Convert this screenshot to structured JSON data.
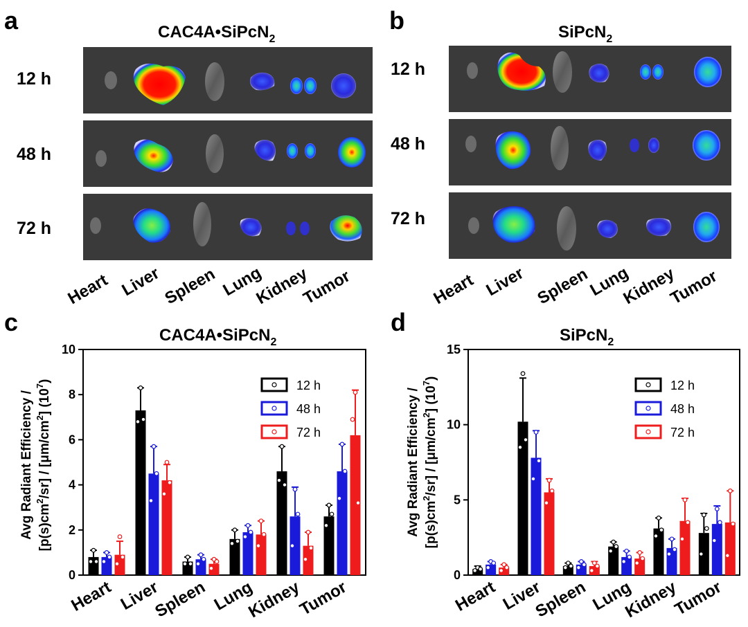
{
  "panel_a": {
    "label": "a",
    "title": "CAC4A•SiPcN",
    "title_sub": "2",
    "time_labels": [
      "12 h",
      "48 h",
      "72 h"
    ],
    "organ_labels": [
      "Heart",
      "Liver",
      "Spleen",
      "Lung",
      "Kidney",
      "Tumor"
    ]
  },
  "panel_b": {
    "label": "b",
    "title": "SiPcN",
    "title_sub": "2",
    "time_labels": [
      "12 h",
      "48 h",
      "72 h"
    ],
    "organ_labels": [
      "Heart",
      "Liver",
      "Spleen",
      "Lung",
      "Kidney",
      "Tumor"
    ]
  },
  "colors": {
    "h12": "#000000",
    "h48": "#1a1adb",
    "h72": "#ee1c1c",
    "imaging_bg": "#3a3a3a"
  },
  "chart_data": [
    {
      "type": "bar",
      "panel_label": "c",
      "title": "CAC4A•SiPcN",
      "title_sub": "2",
      "ylabel_line1": "Avg Radiant Efficiency /",
      "ylabel_line2_a": "[p(s)cm",
      "ylabel_line2_b": "2",
      "ylabel_line2_c": "/sr] / [μm/cm",
      "ylabel_line2_d": "2",
      "ylabel_line2_e": "] (10",
      "ylabel_line2_f": "7",
      "ylabel_line2_g": ")",
      "categories": [
        "Heart",
        "Liver",
        "Spleen",
        "Lung",
        "Kidney",
        "Tumor"
      ],
      "ylim": [
        0,
        10
      ],
      "yticks": [
        0,
        2,
        4,
        6,
        8,
        10
      ],
      "legend_position": "top-right",
      "series": [
        {
          "name": "12 h",
          "color": "#000000",
          "values": [
            0.8,
            7.3,
            0.6,
            1.6,
            4.6,
            2.6
          ],
          "errors": [
            0.3,
            1.0,
            0.2,
            0.4,
            1.1,
            0.5
          ],
          "points": [
            [
              1.1,
              0.6,
              0.6
            ],
            [
              8.3,
              6.8,
              6.9
            ],
            [
              0.8,
              0.5,
              0.5
            ],
            [
              2.0,
              1.4,
              1.5
            ],
            [
              5.7,
              4.2,
              4.0
            ],
            [
              3.1,
              2.2,
              2.7
            ]
          ]
        },
        {
          "name": "48 h",
          "color": "#1a1adb",
          "values": [
            0.8,
            4.5,
            0.7,
            1.9,
            2.6,
            4.6
          ],
          "errors": [
            0.2,
            1.2,
            0.2,
            0.3,
            1.3,
            1.2
          ],
          "points": [
            [
              1.0,
              0.6,
              0.8
            ],
            [
              5.7,
              3.3,
              4.5
            ],
            [
              0.9,
              0.5,
              0.7
            ],
            [
              2.2,
              1.7,
              1.9
            ],
            [
              3.8,
              1.3,
              2.7
            ],
            [
              5.8,
              3.4,
              4.6
            ]
          ]
        },
        {
          "name": "72 h",
          "color": "#ee1c1c",
          "values": [
            0.9,
            4.2,
            0.5,
            1.8,
            1.3,
            6.2
          ],
          "errors": [
            0.6,
            0.7,
            0.2,
            0.6,
            0.6,
            2.0
          ],
          "points": [
            [
              1.7,
              0.5,
              0.8
            ],
            [
              5.0,
              3.6,
              4.1
            ],
            [
              0.7,
              0.3,
              0.6
            ],
            [
              2.4,
              1.3,
              1.8
            ],
            [
              1.9,
              0.7,
              1.2
            ],
            [
              8.1,
              6.9,
              3.2
            ]
          ]
        }
      ]
    },
    {
      "type": "bar",
      "panel_label": "d",
      "title": "SiPcN",
      "title_sub": "2",
      "ylabel_line1": "Avg Radiant Efficiency /",
      "ylabel_line2_a": "[p(s)cm",
      "ylabel_line2_b": "2",
      "ylabel_line2_c": "/sr] / [μm/cm",
      "ylabel_line2_d": "2",
      "ylabel_line2_e": "] (10",
      "ylabel_line2_f": "7",
      "ylabel_line2_g": ")",
      "categories": [
        "Heart",
        "Liver",
        "Spleen",
        "Lung",
        "Kidney",
        "Tumor"
      ],
      "ylim": [
        0,
        15
      ],
      "yticks": [
        0,
        5,
        10,
        15
      ],
      "legend_position": "top-right",
      "series": [
        {
          "name": "12 h",
          "color": "#000000",
          "values": [
            0.4,
            10.2,
            0.6,
            1.9,
            3.1,
            2.8
          ],
          "errors": [
            0.2,
            2.9,
            0.2,
            0.3,
            0.7,
            1.3
          ],
          "points": [
            [
              0.5,
              0.3,
              0.4
            ],
            [
              13.4,
              8.5,
              9.0
            ],
            [
              0.8,
              0.5,
              0.6
            ],
            [
              2.2,
              1.6,
              1.9
            ],
            [
              3.8,
              2.6,
              3.0
            ],
            [
              4.0,
              1.4,
              3.1
            ]
          ]
        },
        {
          "name": "48 h",
          "color": "#1a1adb",
          "values": [
            0.7,
            7.8,
            0.7,
            1.2,
            1.8,
            3.4
          ],
          "errors": [
            0.2,
            1.8,
            0.2,
            0.4,
            0.6,
            1.2
          ],
          "points": [
            [
              0.9,
              0.5,
              0.8
            ],
            [
              9.5,
              6.4,
              7.6
            ],
            [
              0.9,
              0.5,
              0.7
            ],
            [
              1.6,
              0.9,
              1.2
            ],
            [
              2.4,
              1.4,
              1.7
            ],
            [
              4.4,
              2.3,
              3.5
            ]
          ]
        },
        {
          "name": "72 h",
          "color": "#ee1c1c",
          "values": [
            0.5,
            5.5,
            0.6,
            1.1,
            3.6,
            3.5
          ],
          "errors": [
            0.2,
            0.9,
            0.3,
            0.4,
            1.5,
            2.1
          ],
          "points": [
            [
              0.7,
              0.3,
              0.5
            ],
            [
              6.3,
              4.8,
              5.6
            ],
            [
              0.8,
              0.3,
              0.6
            ],
            [
              1.5,
              0.8,
              1.1
            ],
            [
              5.0,
              2.4,
              3.5
            ],
            [
              5.6,
              1.3,
              3.4
            ]
          ]
        }
      ]
    }
  ]
}
